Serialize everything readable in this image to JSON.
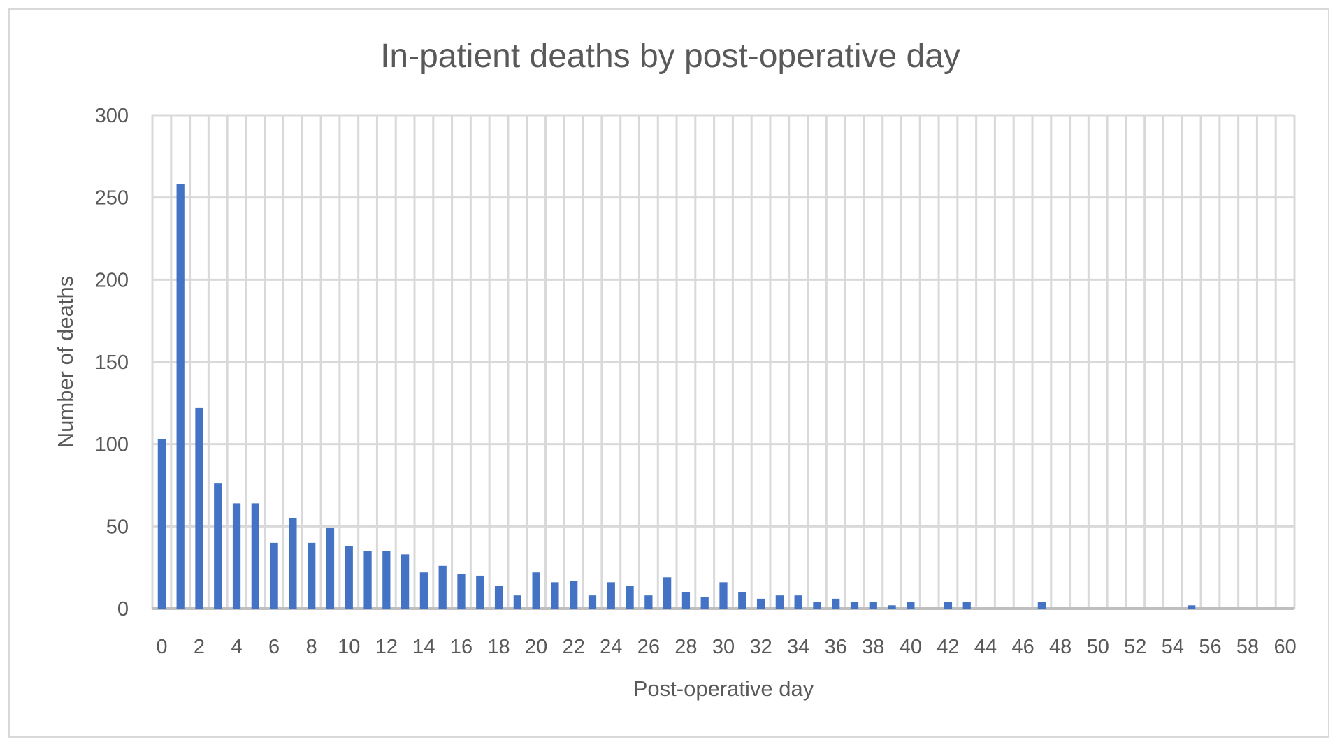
{
  "chart_data": {
    "type": "bar",
    "title": "In-patient deaths by post-operative day",
    "xlabel": "Post-operative day",
    "ylabel": "Number of deaths",
    "ylim": [
      0,
      300
    ],
    "yticks": [
      0,
      50,
      100,
      150,
      200,
      250,
      300
    ],
    "x_tick_step": 2,
    "grid": "on (horizontal and vertical)",
    "legend": "none",
    "bar_color": "#4472C4",
    "grid_color": "#D9D9D9",
    "categories": [
      0,
      1,
      2,
      3,
      4,
      5,
      6,
      7,
      8,
      9,
      10,
      11,
      12,
      13,
      14,
      15,
      16,
      17,
      18,
      19,
      20,
      21,
      22,
      23,
      24,
      25,
      26,
      27,
      28,
      29,
      30,
      31,
      32,
      33,
      34,
      35,
      36,
      37,
      38,
      39,
      40,
      41,
      42,
      43,
      44,
      45,
      46,
      47,
      48,
      49,
      50,
      51,
      52,
      53,
      54,
      55,
      56,
      57,
      58,
      59,
      60
    ],
    "values": [
      103,
      258,
      122,
      76,
      64,
      64,
      40,
      55,
      40,
      49,
      38,
      35,
      35,
      33,
      22,
      26,
      21,
      20,
      14,
      8,
      22,
      16,
      17,
      8,
      16,
      14,
      8,
      19,
      10,
      7,
      16,
      10,
      6,
      8,
      8,
      4,
      6,
      4,
      4,
      2,
      4,
      0,
      4,
      4,
      0,
      0,
      0,
      4,
      0,
      0,
      0,
      0,
      0,
      0,
      0,
      2,
      0,
      0,
      0,
      0,
      0
    ]
  }
}
